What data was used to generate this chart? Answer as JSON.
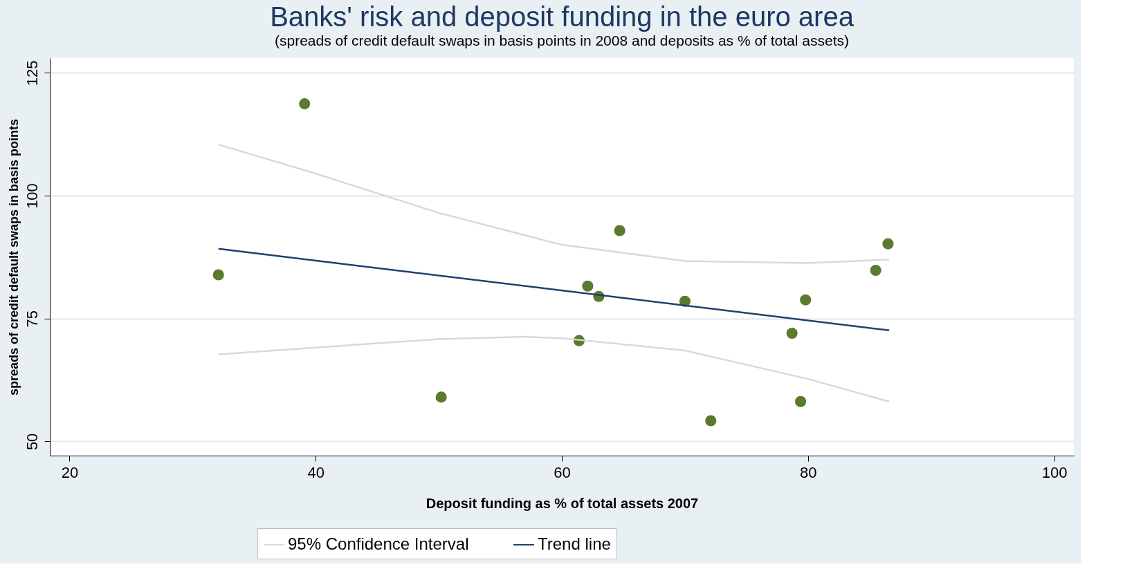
{
  "chart_data": {
    "type": "scatter",
    "title": "Banks' risk and deposit funding in the euro area",
    "subtitle": "(spreads of credit default swaps in basis points in 2008 and deposits as % of total assets)",
    "xlabel": "Deposit funding as % of total assets 2007",
    "ylabel": "spreads of credit default swaps in basis points",
    "xlim": [
      18.4,
      101.6
    ],
    "ylim": [
      47.1,
      128
    ],
    "xticks": [
      20,
      40,
      60,
      80,
      100
    ],
    "yticks": [
      50,
      75,
      100,
      125
    ],
    "grid": "y",
    "legend": "bottom",
    "series": [
      {
        "marker": "circle",
        "color": "#5a7a2e",
        "x": [
          32.1,
          39.1,
          50.2,
          61.4,
          62.1,
          63.0,
          64.7,
          70.0,
          72.1,
          78.7,
          79.4,
          79.8,
          85.5,
          86.5
        ],
        "values": [
          83.9,
          118.7,
          59.0,
          70.5,
          81.6,
          79.5,
          92.9,
          78.5,
          54.2,
          72.0,
          58.1,
          78.8,
          84.8,
          90.2
        ]
      },
      {
        "type": "line",
        "marker": "none",
        "name": "95% Confidence Interval",
        "color": "#d9d9d9",
        "x": [
          32.1,
          40,
          50,
          60,
          70,
          80,
          86.6
        ],
        "values": [
          110.4,
          104.5,
          96.5,
          90.0,
          86.7,
          86.3,
          87.0
        ]
      },
      {
        "type": "line",
        "marker": "none",
        "color": "#d9d9d9",
        "x": [
          32.1,
          40,
          50,
          57,
          60,
          70,
          80,
          86.6
        ],
        "values": [
          67.7,
          69.1,
          70.8,
          71.3,
          71.0,
          68.5,
          62.7,
          58.1
        ]
      },
      {
        "type": "line",
        "marker": "none",
        "name": "Trend line",
        "color": "#1f3f6e",
        "x": [
          32.1,
          86.6
        ],
        "values": [
          89.2,
          72.6
        ]
      }
    ]
  }
}
